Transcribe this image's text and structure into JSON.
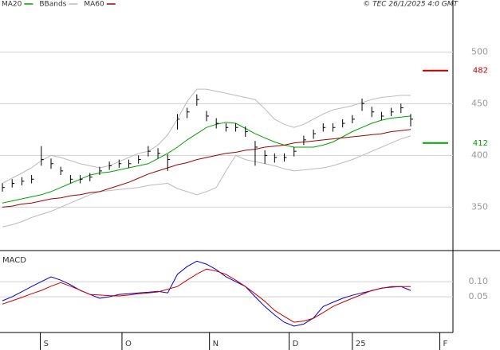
{
  "chart_data": [
    {
      "type": "ohlc",
      "source": "© TEC 26/1/2025 4:0 GMT",
      "xlim": [
        -0.25,
        46.35
      ],
      "ylim": [
        308,
        541
      ],
      "yticks": [
        350,
        400,
        450,
        500
      ],
      "grid": true,
      "bar_color": "#000000",
      "high": [
        373,
        377,
        379,
        381,
        409,
        397,
        389,
        381,
        381,
        383,
        389,
        394,
        396,
        396,
        400,
        409,
        407,
        401,
        440,
        446,
        459,
        443,
        436,
        431,
        431,
        428,
        414,
        405,
        402,
        402,
        408,
        419,
        425,
        431,
        431,
        435,
        439,
        455,
        447,
        442,
        446,
        450,
        440
      ],
      "low": [
        365,
        369,
        371,
        373,
        390,
        387,
        381,
        373,
        373,
        375,
        381,
        386,
        388,
        388,
        392,
        399,
        397,
        385,
        425,
        436,
        448,
        433,
        426,
        423,
        423,
        418,
        390,
        392,
        393,
        394,
        399,
        410,
        416,
        423,
        423,
        427,
        431,
        443,
        437,
        434,
        438,
        441,
        428
      ],
      "close": [
        369,
        373,
        375,
        377,
        396,
        392,
        385,
        377,
        377,
        379,
        385,
        390,
        392,
        392,
        396,
        404,
        402,
        396,
        435,
        442,
        454,
        438,
        431,
        427,
        427,
        423,
        408,
        400,
        398,
        398,
        404,
        415,
        421,
        427,
        427,
        431,
        435,
        450,
        442,
        438,
        442,
        446,
        435
      ],
      "series": [
        {
          "name": "MA20",
          "color": "#00a000",
          "values": [
            354,
            356,
            358,
            360,
            362,
            365,
            369,
            373,
            377,
            381,
            383,
            384,
            386,
            388,
            390,
            392,
            397,
            402,
            408,
            415,
            421,
            427,
            430,
            432,
            431,
            426,
            421,
            417,
            413,
            410,
            408,
            408,
            408,
            410,
            413,
            418,
            423,
            427,
            431,
            434,
            436,
            437,
            438
          ]
        },
        {
          "name": "BBands",
          "color": "#bbbbbb",
          "upper": [
            373,
            378,
            383,
            388,
            395,
            400,
            398,
            395,
            392,
            390,
            388,
            390,
            394,
            398,
            402,
            404,
            410,
            420,
            435,
            452,
            464,
            464,
            462,
            460,
            458,
            456,
            454,
            445,
            435,
            430,
            427,
            430,
            435,
            440,
            444,
            446,
            448,
            451,
            454,
            456,
            457,
            458,
            458
          ],
          "lower": [
            331,
            333,
            336,
            340,
            343,
            346,
            350,
            354,
            358,
            362,
            365,
            366,
            367,
            368,
            369,
            371,
            372,
            373,
            368,
            365,
            362,
            365,
            369,
            385,
            400,
            396,
            394,
            392,
            390,
            387,
            385,
            386,
            387,
            388,
            390,
            393,
            396,
            400,
            404,
            408,
            412,
            416,
            419
          ]
        },
        {
          "name": "MA60",
          "color": "#a00000",
          "values": [
            350,
            351,
            353,
            354,
            356,
            358,
            359,
            361,
            362,
            364,
            365,
            368,
            371,
            374,
            378,
            382,
            385,
            388,
            391,
            393,
            396,
            398,
            400,
            402,
            403,
            405,
            406,
            408,
            409,
            410,
            412,
            413,
            414,
            415,
            416,
            417,
            418,
            419,
            420,
            421,
            423,
            424,
            425
          ]
        }
      ],
      "targets": [
        {
          "value": 482,
          "color": "#c00000"
        },
        {
          "value": 412,
          "color": "#00a000"
        }
      ]
    },
    {
      "type": "line",
      "title": "MACD",
      "xlim": [
        -0.25,
        46.35
      ],
      "ylim": [
        -0.068,
        0.195
      ],
      "yticks": [
        {
          "value": 0.1,
          "label": "0.10"
        },
        {
          "value": 0.05,
          "label": "0.05"
        }
      ],
      "xticks": [
        {
          "value": 3.9,
          "label": "S"
        },
        {
          "value": 12.3,
          "label": "O"
        },
        {
          "value": 21.3,
          "label": "N"
        },
        {
          "value": 29.5,
          "label": "D"
        },
        {
          "value": 36.0,
          "label": "25"
        },
        {
          "value": 45.0,
          "label": "F"
        }
      ],
      "series": [
        {
          "color": "#0000cc",
          "values": [
            0.037,
            0.05,
            0.067,
            0.084,
            0.1,
            0.116,
            0.105,
            0.09,
            0.071,
            0.058,
            0.045,
            0.05,
            0.058,
            0.06,
            0.063,
            0.065,
            0.068,
            0.063,
            0.124,
            0.15,
            0.168,
            0.158,
            0.14,
            0.116,
            0.1,
            0.084,
            0.05,
            0.018,
            -0.01,
            -0.034,
            -0.047,
            -0.04,
            -0.02,
            0.018,
            0.032,
            0.045,
            0.055,
            0.063,
            0.07,
            0.079,
            0.082,
            0.084,
            0.071
          ]
        },
        {
          "color": "#cc0000",
          "values": [
            0.026,
            0.037,
            0.048,
            0.06,
            0.071,
            0.085,
            0.097,
            0.085,
            0.072,
            0.058,
            0.056,
            0.054,
            0.053,
            0.056,
            0.06,
            0.063,
            0.066,
            0.075,
            0.084,
            0.105,
            0.125,
            0.142,
            0.135,
            0.124,
            0.105,
            0.084,
            0.06,
            0.035,
            0.005,
            -0.015,
            -0.034,
            -0.03,
            -0.021,
            -0.002,
            0.018,
            0.032,
            0.045,
            0.058,
            0.071,
            0.078,
            0.084,
            0.084,
            0.084
          ]
        }
      ]
    }
  ]
}
